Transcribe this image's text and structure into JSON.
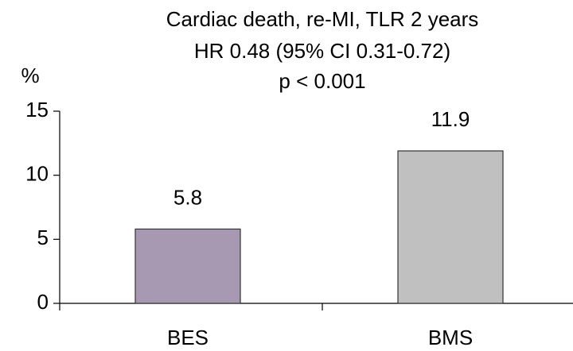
{
  "chart_data": {
    "type": "bar",
    "title": "Cardiac death, re-MI, TLR 2 years",
    "subtitles": [
      "HR 0.48 (95% CI 0.31-0.72)",
      "p < 0.001"
    ],
    "y_label": "%",
    "categories": [
      "BES",
      "BMS"
    ],
    "values": [
      5.8,
      11.9
    ],
    "colors": [
      "#a899b3",
      "#c0c0c0"
    ],
    "ylim": [
      0,
      15
    ],
    "yticks": [
      0,
      5,
      10,
      15
    ],
    "grid": false
  }
}
